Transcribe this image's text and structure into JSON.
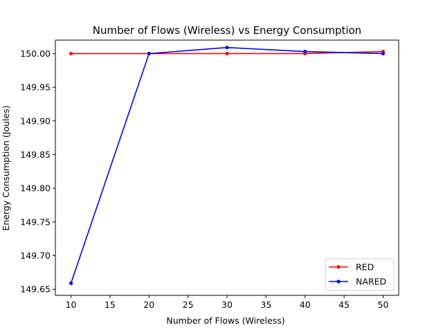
{
  "chart_data": {
    "type": "line",
    "title": "Number of Flows (Wireless)  vs Energy Consumption",
    "xlabel": "Number of Flows (Wireless)",
    "ylabel": "Energy Consumption (Joules)",
    "x": [
      10,
      20,
      30,
      40,
      50
    ],
    "xlim": [
      8,
      52
    ],
    "ylim": [
      149.641,
      150.02
    ],
    "xticks": [
      "10",
      "15",
      "20",
      "25",
      "30",
      "35",
      "40",
      "45",
      "50"
    ],
    "yticks": [
      "149.65",
      "149.70",
      "149.75",
      "149.80",
      "149.85",
      "149.90",
      "149.95",
      "150.00"
    ],
    "grid": false,
    "legend_position": "lower-right",
    "series": [
      {
        "name": "RED",
        "color": "#ff0000",
        "values": [
          150.0,
          150.0,
          150.0,
          150.0,
          150.003
        ]
      },
      {
        "name": "NARED",
        "color": "#0000ff",
        "values": [
          149.659,
          150.0,
          150.009,
          150.003,
          150.0
        ]
      }
    ]
  }
}
